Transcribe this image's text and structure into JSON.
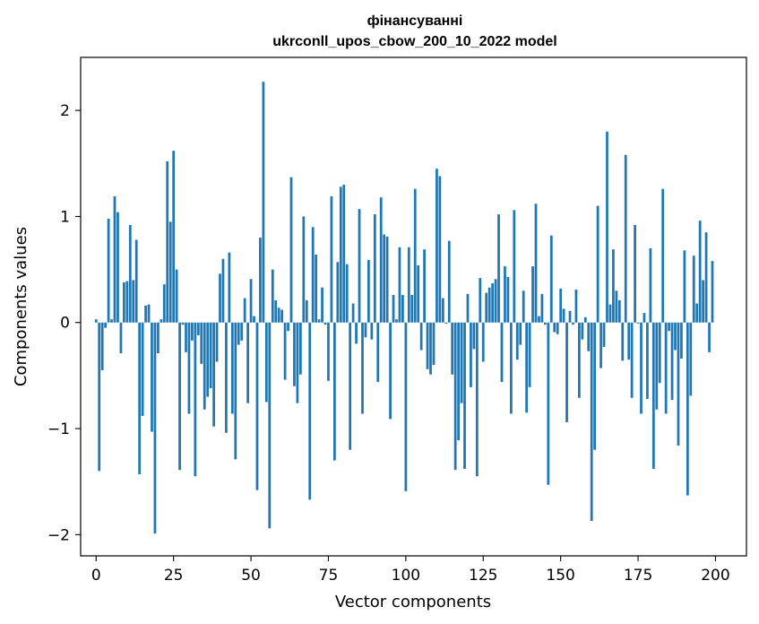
{
  "chart_data": {
    "type": "bar",
    "title": "фінансуванні",
    "subtitle": "ukrconll_upos_cbow_200_10_2022 model",
    "xlabel": "Vector components",
    "ylabel": "Components values",
    "xlim": [
      -5,
      210
    ],
    "ylim": [
      -2.2,
      2.5
    ],
    "xticks": [
      0,
      25,
      50,
      75,
      100,
      125,
      150,
      175,
      200
    ],
    "yticks": [
      -2,
      -1,
      0,
      1,
      2
    ],
    "ytick_labels": [
      "−2",
      "−1",
      "0",
      "1",
      "2"
    ],
    "bar_color": "#1f77b4",
    "grid": false,
    "x": [
      0,
      1,
      2,
      3,
      4,
      5,
      6,
      7,
      8,
      9,
      10,
      11,
      12,
      13,
      14,
      15,
      16,
      17,
      18,
      19,
      20,
      21,
      22,
      23,
      24,
      25,
      26,
      27,
      28,
      29,
      30,
      31,
      32,
      33,
      34,
      35,
      36,
      37,
      38,
      39,
      40,
      41,
      42,
      43,
      44,
      45,
      46,
      47,
      48,
      49,
      50,
      51,
      52,
      53,
      54,
      55,
      56,
      57,
      58,
      59,
      60,
      61,
      62,
      63,
      64,
      65,
      66,
      67,
      68,
      69,
      70,
      71,
      72,
      73,
      74,
      75,
      76,
      77,
      78,
      79,
      80,
      81,
      82,
      83,
      84,
      85,
      86,
      87,
      88,
      89,
      90,
      91,
      92,
      93,
      94,
      95,
      96,
      97,
      98,
      99,
      100,
      101,
      102,
      103,
      104,
      105,
      106,
      107,
      108,
      109,
      110,
      111,
      112,
      113,
      114,
      115,
      116,
      117,
      118,
      119,
      120,
      121,
      122,
      123,
      124,
      125,
      126,
      127,
      128,
      129,
      130,
      131,
      132,
      133,
      134,
      135,
      136,
      137,
      138,
      139,
      140,
      141,
      142,
      143,
      144,
      145,
      146,
      147,
      148,
      149,
      150,
      151,
      152,
      153,
      154,
      155,
      156,
      157,
      158,
      159,
      160,
      161,
      162,
      163,
      164,
      165,
      166,
      167,
      168,
      169,
      170,
      171,
      172,
      173,
      174,
      175,
      176,
      177,
      178,
      179,
      180,
      181,
      182,
      183,
      184,
      185,
      186,
      187,
      188,
      189,
      190,
      191,
      192,
      193,
      194,
      195,
      196,
      197,
      198,
      199
    ],
    "values": [
      0.03,
      -1.4,
      -0.45,
      -0.05,
      0.98,
      0.03,
      1.19,
      1.04,
      -0.29,
      0.38,
      0.39,
      0.92,
      0.4,
      0.78,
      -1.43,
      -0.88,
      0.16,
      0.17,
      -1.03,
      -1.99,
      -0.29,
      0.03,
      0.36,
      1.52,
      0.95,
      1.62,
      0.5,
      -1.39,
      -0.02,
      -0.28,
      -0.86,
      -0.17,
      -1.45,
      -0.12,
      -0.39,
      -0.82,
      -0.7,
      -0.62,
      -0.98,
      -0.37,
      0.46,
      0.6,
      -1.04,
      0.66,
      -0.86,
      -1.29,
      -0.21,
      -0.17,
      0.23,
      -0.76,
      0.41,
      0.06,
      -1.58,
      0.8,
      2.27,
      -0.75,
      -1.94,
      0.5,
      0.21,
      0.14,
      0.12,
      -0.54,
      -0.08,
      1.37,
      -0.6,
      -0.76,
      -0.49,
      1.0,
      0.21,
      -1.67,
      0.9,
      0.64,
      0.03,
      0.33,
      -0.02,
      -0.55,
      1.19,
      -1.3,
      0.57,
      1.28,
      1.3,
      0.55,
      -1.2,
      0.18,
      -0.2,
      1.07,
      -0.86,
      -0.14,
      0.59,
      -0.16,
      1.02,
      -0.56,
      1.18,
      0.83,
      0.81,
      -0.91,
      0.26,
      0.03,
      0.71,
      0.26,
      -1.59,
      0.71,
      0.26,
      1.26,
      0.54,
      -0.26,
      0.69,
      -0.44,
      -0.49,
      -0.4,
      1.45,
      1.38,
      0.23,
      -0.01,
      0.77,
      -0.49,
      -1.39,
      -1.11,
      -0.76,
      -1.38,
      0.27,
      -0.61,
      -0.25,
      -1.45,
      0.42,
      -0.37,
      0.28,
      0.33,
      0.37,
      0.41,
      1.02,
      -0.56,
      0.53,
      0.43,
      -0.86,
      1.06,
      -0.35,
      -0.21,
      0.3,
      -0.85,
      -0.61,
      0.53,
      1.12,
      0.06,
      0.27,
      -0.02,
      -1.53,
      0.82,
      -0.09,
      -0.11,
      0.32,
      0.13,
      -0.94,
      0.11,
      -0.02,
      0.31,
      -0.71,
      -0.16,
      0.05,
      -0.27,
      -1.87,
      -1.2,
      1.1,
      -0.43,
      -0.23,
      1.8,
      0.17,
      0.69,
      0.3,
      0.21,
      -0.36,
      1.58,
      -0.35,
      -0.71,
      0.92,
      -0.01,
      -0.86,
      0.09,
      -0.72,
      0.7,
      -1.38,
      -0.82,
      -0.57,
      1.26,
      -0.86,
      -0.08,
      -0.73,
      -0.26,
      -1.16,
      -0.34,
      0.68,
      -1.63,
      -0.69,
      0.63,
      0.18,
      0.96,
      0.4,
      0.85,
      -0.28,
      0.58
    ]
  }
}
